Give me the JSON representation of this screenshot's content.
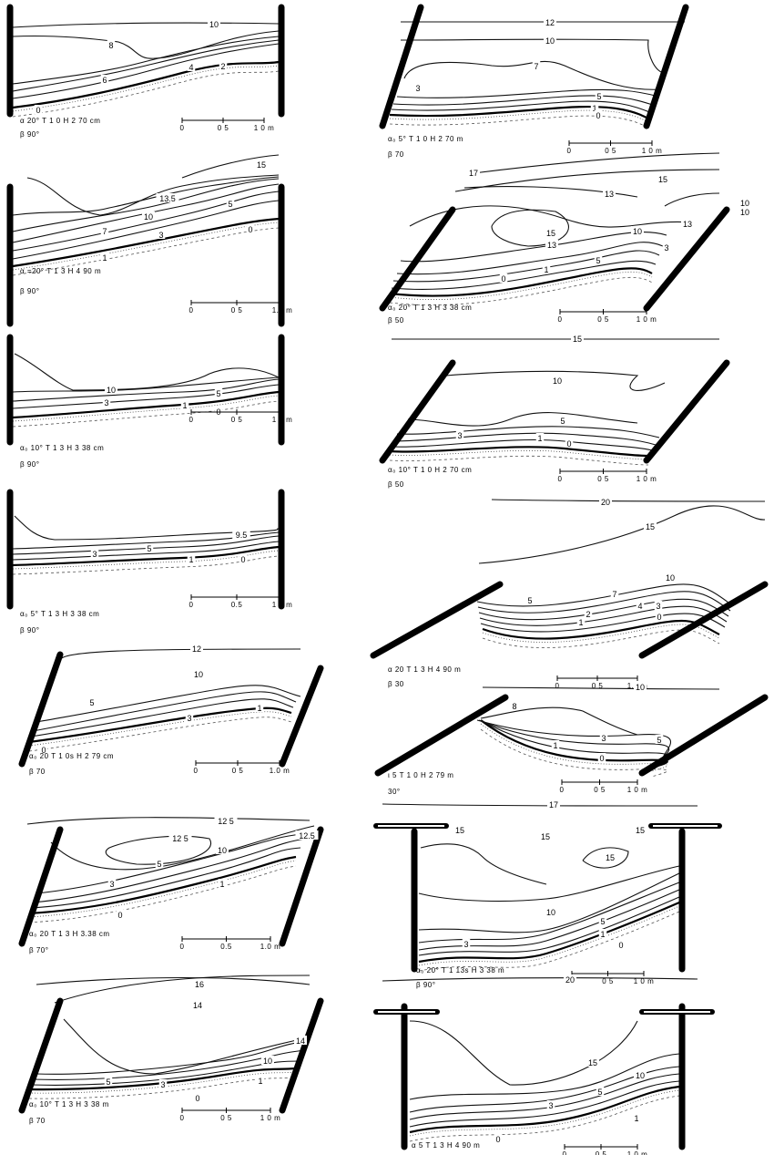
{
  "panels": [
    {
      "contour_labels": [
        "10",
        "8",
        "6",
        "4",
        "2",
        "0"
      ],
      "caption_line1": [
        "α",
        "20°",
        "T 1 0",
        "H 2 70 cm"
      ],
      "caption_line2": [
        "β",
        "90°"
      ],
      "scale": [
        "0",
        "0 5",
        "1 0 m"
      ]
    },
    {
      "contour_labels": [
        "15",
        "13.5",
        "10",
        "7",
        "5",
        "3",
        "1",
        "0"
      ],
      "caption_line1": [
        "α =20°",
        "T 1 3",
        "H 4 90 m"
      ],
      "caption_line2": [
        "β",
        "90°"
      ],
      "scale": [
        "0",
        "0 5",
        "1.0 m"
      ]
    },
    {
      "contour_labels": [
        "10",
        "5",
        "3",
        "1",
        "0"
      ],
      "caption_line1": [
        "α₀ 10°",
        "T 1 3",
        "H 3 38 cm"
      ],
      "caption_line2": [
        "β",
        "90°"
      ],
      "scale": [
        "0",
        "0 5",
        "1 0 m"
      ]
    },
    {
      "contour_labels": [
        "9.5",
        "5",
        "3",
        "1",
        "0"
      ],
      "caption_line1": [
        "α₀ 5°",
        "T 1 3",
        "H 3 38 cm"
      ],
      "caption_line2": [
        "β",
        "90°"
      ],
      "scale": [
        "0",
        "0.5",
        "1 0 m"
      ]
    },
    {
      "contour_labels": [
        "12",
        "10",
        "5",
        "3",
        "1",
        "0"
      ],
      "caption_line1": [
        "α₀ 20",
        "T 1 0s",
        "H 2 79 cm"
      ],
      "caption_line2": [
        "β",
        "70"
      ],
      "scale": [
        "0",
        "0 5",
        "1.0 m"
      ]
    },
    {
      "contour_labels": [
        "12 5",
        "12 5",
        "12.5",
        "10",
        "5",
        "3",
        "1",
        "0"
      ],
      "caption_line1": [
        "α₀ 20",
        "T 1 3",
        "H 3.38 cm"
      ],
      "caption_line2": [
        "β",
        "70°"
      ],
      "scale": [
        "0",
        "0.5",
        "1.0 m"
      ]
    },
    {
      "contour_labels": [
        "16",
        "14",
        "14",
        "10",
        "5",
        "3",
        "1",
        "0"
      ],
      "caption_line1": [
        "α₀ 10°",
        "T 1 3",
        "H 3 38 m"
      ],
      "caption_line2": [
        "β",
        "70"
      ],
      "scale": [
        "0",
        "0 5",
        "1 0 m"
      ]
    },
    {
      "contour_labels": [
        "12",
        "10",
        "7",
        "5",
        "3",
        "1",
        "0"
      ],
      "caption_line1": [
        "α₀ 5°",
        "T 1 0",
        "H 2 70 m"
      ],
      "caption_line2": [
        "β",
        "70"
      ],
      "scale": [
        "0",
        "0 5",
        "1 0 m"
      ]
    },
    {
      "contour_labels": [
        "17",
        "15",
        "13",
        "10",
        "10",
        "15",
        "13",
        "10",
        "13",
        "5",
        "3",
        "1",
        "0"
      ],
      "caption_line1": [
        "α₀ 20°",
        "T 1 3",
        "H 3 38 cm"
      ],
      "caption_line2": [
        "β",
        "50"
      ],
      "scale": [
        "0",
        "0 5",
        "1 0 m"
      ]
    },
    {
      "contour_labels": [
        "15",
        "10",
        "5",
        "3",
        "1",
        "0"
      ],
      "caption_line1": [
        "α₀ 10°",
        "T 1 0",
        "H 2 70 cm"
      ],
      "caption_line2": [
        "β",
        "50"
      ],
      "scale": [
        "0",
        "0 5",
        "1 0 m"
      ]
    },
    {
      "contour_labels": [
        "20",
        "15",
        "10",
        "7",
        "5",
        "4",
        "3",
        "2",
        "1",
        "0"
      ],
      "caption_line1": [
        "α",
        "20",
        "T 1 3",
        "H 4 90 m"
      ],
      "caption_line2": [
        "β",
        "30"
      ],
      "scale": [
        "0",
        "0 5",
        "1.0 m"
      ]
    },
    {
      "contour_labels": [
        "10",
        "8",
        "3",
        "5",
        "1",
        "0"
      ],
      "caption_line1": [
        "ι",
        "5",
        "T 1 0",
        "H 2 79 m"
      ],
      "caption_line2": [
        "30°"
      ],
      "scale": [
        "0",
        "0 5",
        "1 0 m"
      ]
    },
    {
      "contour_labels": [
        "17",
        "15",
        "15",
        "15",
        "15",
        "10",
        "5",
        "3",
        "1",
        "0"
      ],
      "caption_line1": [
        "α₀ 20°",
        "T 1 13s",
        "H 3 38",
        "m"
      ],
      "caption_line2": [
        "β",
        "90°"
      ],
      "scale": [
        "0",
        "0 5",
        "1 0 m"
      ]
    },
    {
      "contour_labels": [
        "20",
        "15",
        "10",
        "5",
        "3",
        "1",
        "0"
      ],
      "caption_line1": [
        "α 5",
        "T 1 3",
        "H 4 90",
        "m"
      ],
      "caption_line2": [
        "ι",
        "90°"
      ],
      "scale": [
        "0",
        "0 5",
        "1 0 m"
      ]
    }
  ]
}
